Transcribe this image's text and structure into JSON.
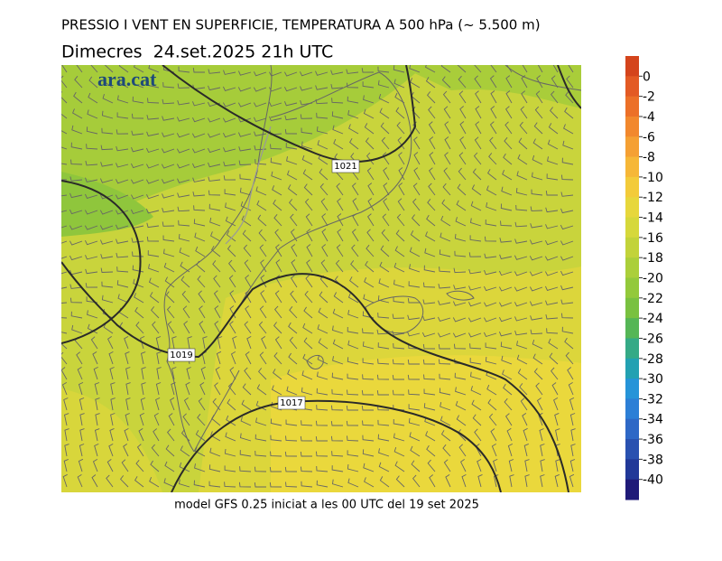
{
  "header": {
    "title": "PRESSIO I VENT EN SUPERFICIE, TEMPERATURA A 500 hPa (~ 5.500 m)",
    "subtitle": "Dimecres  24.set.2025 21h UTC"
  },
  "logo": "ara.cat",
  "isobars": [
    "1021",
    "1019",
    "1017"
  ],
  "colorbar": {
    "ticks": [
      0,
      -2,
      -4,
      -6,
      -8,
      -10,
      -12,
      -14,
      -16,
      -18,
      -20,
      -22,
      -24,
      -26,
      -28,
      -30,
      -32,
      -34,
      -36,
      -38,
      -40
    ],
    "colors": [
      "#d4441c",
      "#e35a24",
      "#ec7028",
      "#f2882d",
      "#f5a033",
      "#f6b737",
      "#f3cb3a",
      "#e7d73c",
      "#d6d83b",
      "#c2d33a",
      "#abcf3a",
      "#93c93b",
      "#79c140",
      "#55b656",
      "#35aa86",
      "#23a1b2",
      "#2694d8",
      "#2c7fd6",
      "#2e68c6",
      "#2951b0",
      "#213898",
      "#1f1a78"
    ]
  },
  "footer": "model GFS 0.25 iniciat a les 00 UTC del 19 set 2025"
}
